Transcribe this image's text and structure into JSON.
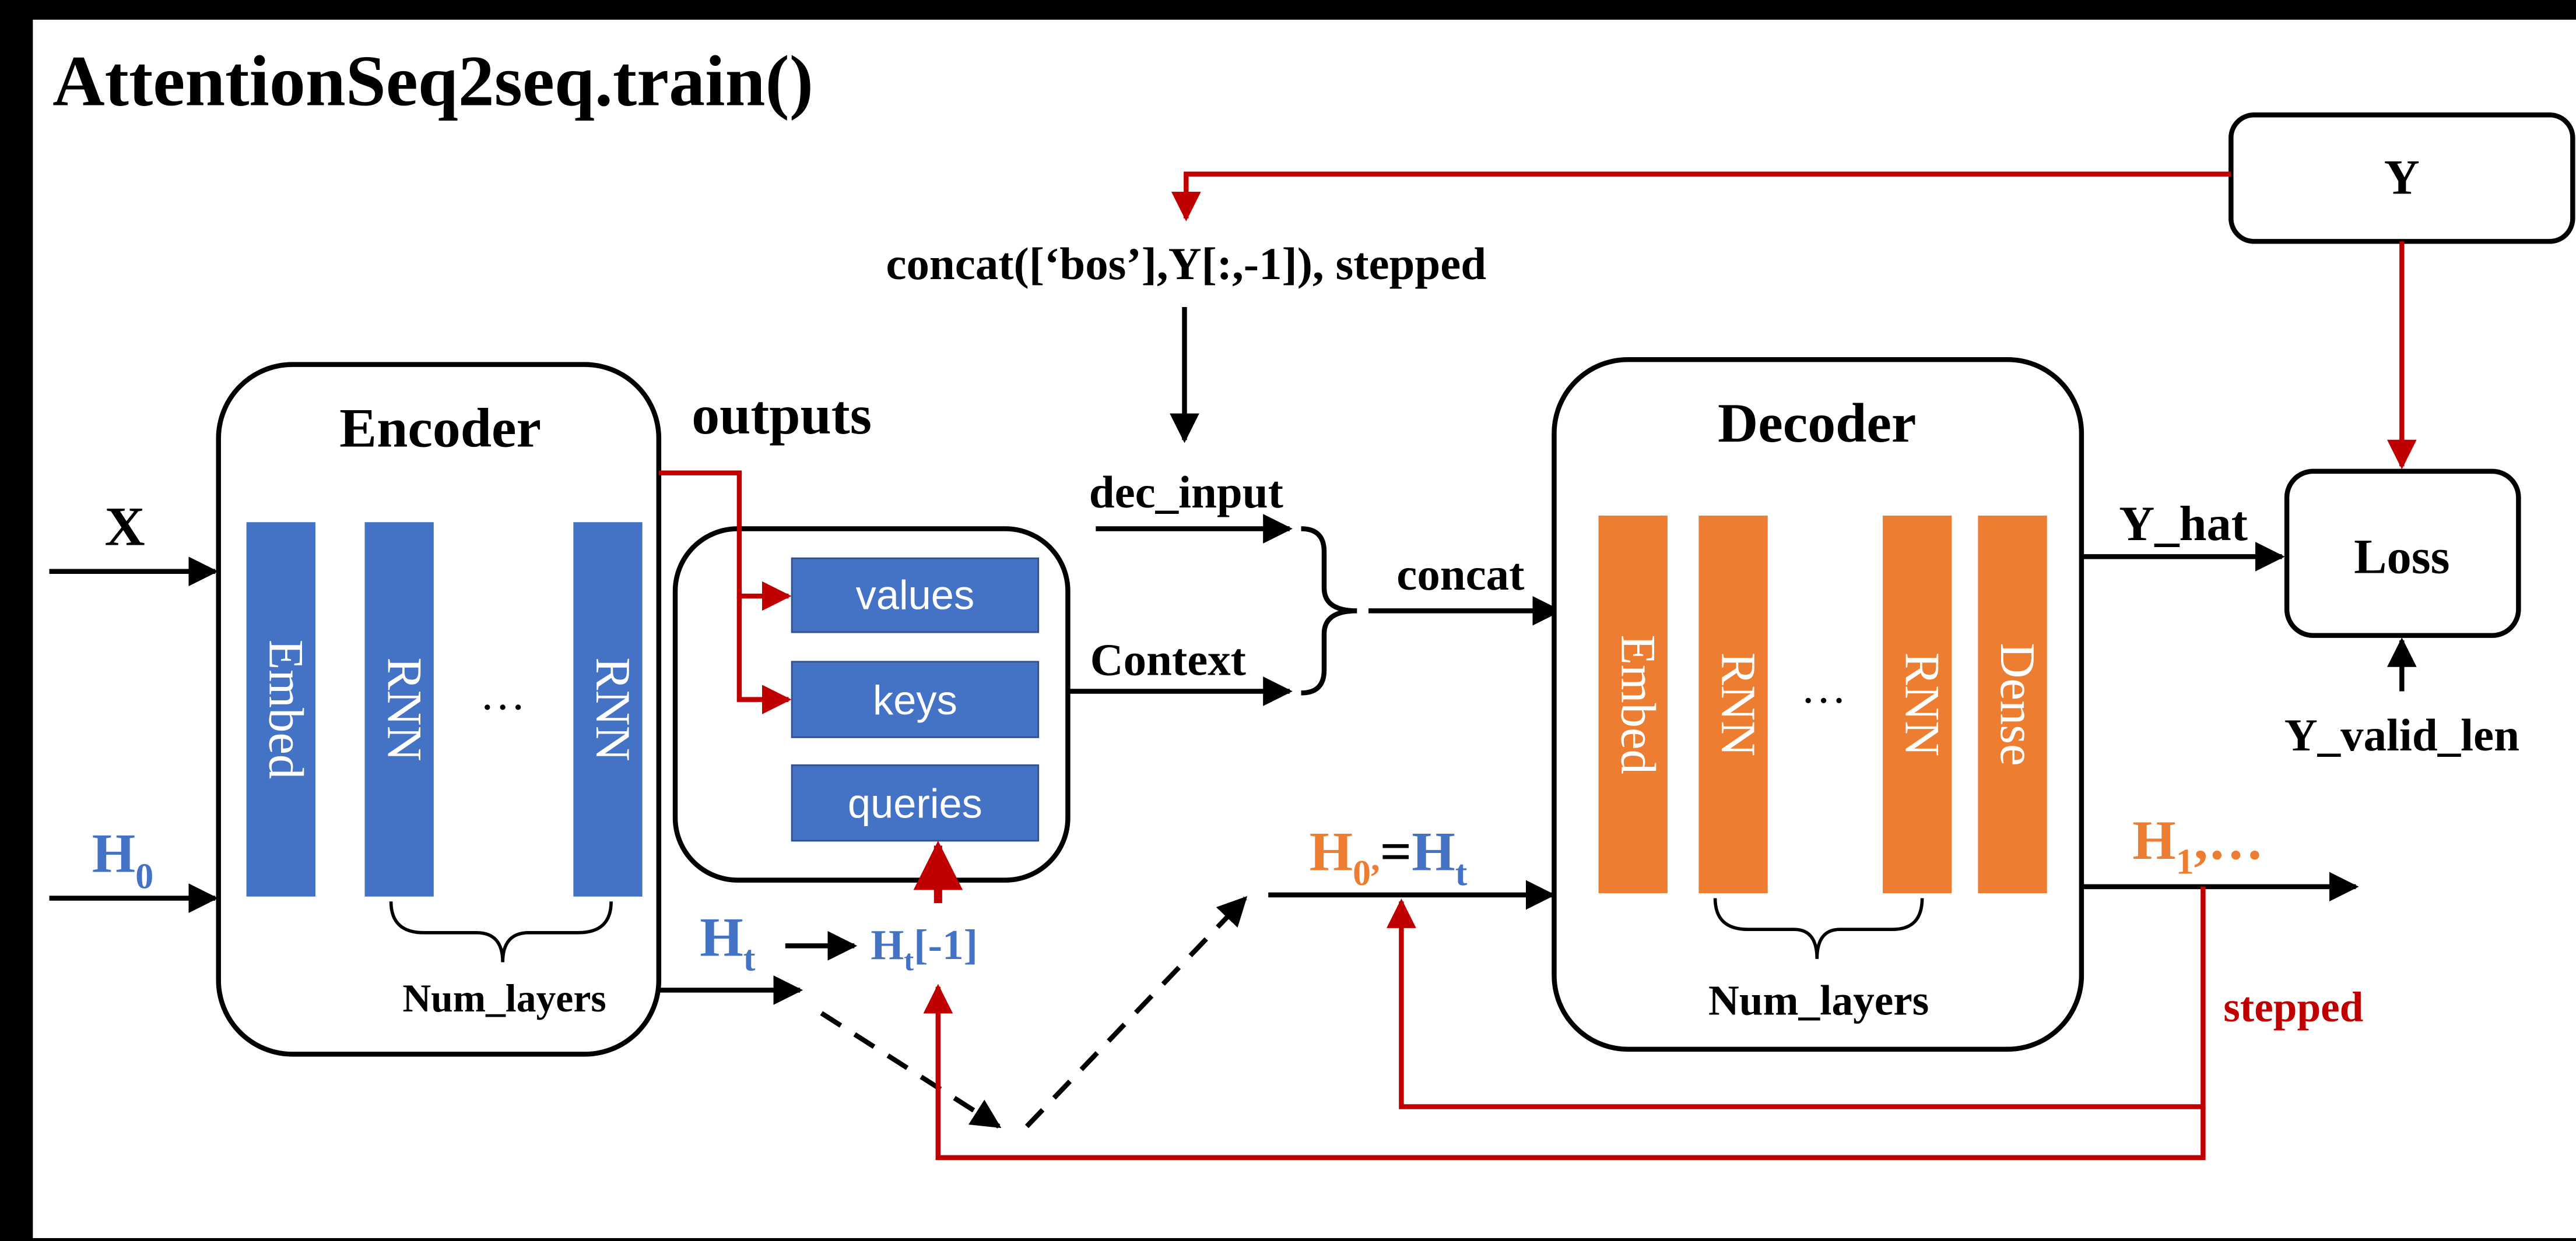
{
  "title": "AttentionSeq2seq.train()",
  "colors": {
    "background": "#ffffff",
    "frame": "#000000",
    "blue": "#4472C4",
    "orange": "#ED7D31",
    "red": "#C00000",
    "black": "#000000"
  },
  "inputs": {
    "x": "X",
    "h0_main": "H",
    "h0_sub": "0"
  },
  "encoder": {
    "title": "Encoder",
    "layers": [
      "Embed",
      "RNN",
      "RNN"
    ],
    "ellipsis": "…",
    "num_layers": "Num_layers"
  },
  "outputs_label": "outputs",
  "attention": {
    "values": "values",
    "keys": "keys",
    "queries": "queries"
  },
  "ht": {
    "main": "H",
    "sub": "t"
  },
  "ht_last": {
    "main": "H",
    "sub": "t",
    "suffix": "[-1]"
  },
  "decoder_input": {
    "concat_expr": "concat([‘bos’],Y[:,-1]), stepped",
    "dec_input": "dec_input",
    "context": "Context",
    "concat": "concat"
  },
  "decoder_state": {
    "h0": "H",
    "h0_sub": "0",
    "sep": ",",
    "eq": "=",
    "ht": "H",
    "ht_sub": "t"
  },
  "decoder": {
    "title": "Decoder",
    "layers": [
      "Embed",
      "RNN",
      "RNN",
      "Dense"
    ],
    "ellipsis": "…",
    "num_layers": "Num_layers"
  },
  "decoder_out": {
    "y_hat": "Y_hat",
    "h1": "H",
    "h1_sub": "1",
    "h1_rest": ",…",
    "stepped": "stepped"
  },
  "y_box": "Y",
  "loss_box": "Loss",
  "y_valid_len": "Y_valid_len"
}
